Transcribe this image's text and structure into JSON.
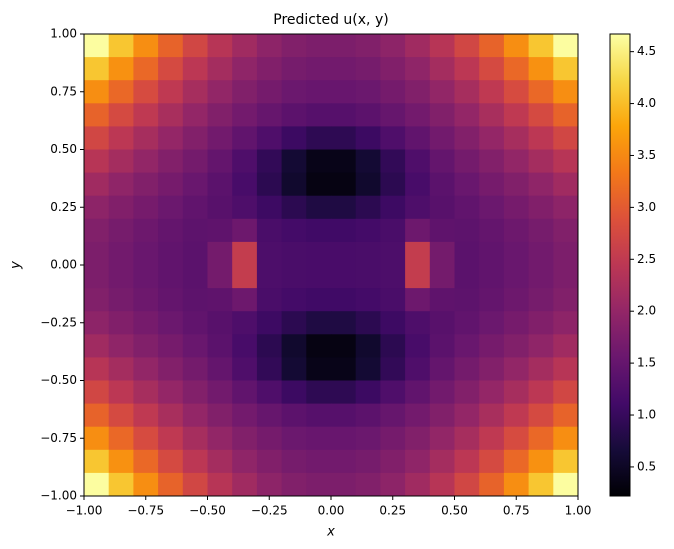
{
  "chart_data": {
    "type": "heatmap",
    "title": "Predicted u(x, y)",
    "x_label": "x",
    "y_label": "y",
    "colormap": "inferno",
    "x": [
      -0.95,
      -0.85,
      -0.75,
      -0.65,
      -0.55,
      -0.45,
      -0.35,
      -0.25,
      -0.15,
      -0.05,
      0.05,
      0.15,
      0.25,
      0.35,
      0.45,
      0.55,
      0.65,
      0.75,
      0.85,
      0.95
    ],
    "y": [
      0.95,
      0.85,
      0.75,
      0.65,
      0.55,
      0.45,
      0.35,
      0.25,
      0.15,
      0.05,
      -0.05,
      -0.15,
      -0.25,
      -0.35,
      -0.45,
      -0.55,
      -0.65,
      -0.75,
      -0.85,
      -0.95
    ],
    "z": [
      [
        4.65,
        4.07,
        3.55,
        3.1,
        2.72,
        2.39,
        2.14,
        1.94,
        1.81,
        1.75,
        1.75,
        1.81,
        1.94,
        2.14,
        2.39,
        2.72,
        3.1,
        3.55,
        4.07,
        4.65
      ],
      [
        4.07,
        3.58,
        3.15,
        2.77,
        2.45,
        2.18,
        1.96,
        1.8,
        1.69,
        1.64,
        1.64,
        1.69,
        1.8,
        1.96,
        2.18,
        2.45,
        2.77,
        3.15,
        3.58,
        4.07
      ],
      [
        3.55,
        3.15,
        2.79,
        2.48,
        2.21,
        1.99,
        1.81,
        1.67,
        1.57,
        1.53,
        1.53,
        1.57,
        1.67,
        1.81,
        1.99,
        2.21,
        2.48,
        2.79,
        3.15,
        3.55
      ],
      [
        3.1,
        2.77,
        2.48,
        2.23,
        2.0,
        1.81,
        1.65,
        1.51,
        1.4,
        1.33,
        1.33,
        1.4,
        1.51,
        1.65,
        1.81,
        2.0,
        2.23,
        2.48,
        2.77,
        3.1
      ],
      [
        2.72,
        2.45,
        2.21,
        2.01,
        1.82,
        1.64,
        1.45,
        1.25,
        1.05,
        0.91,
        0.91,
        1.05,
        1.25,
        1.45,
        1.64,
        1.82,
        2.01,
        2.21,
        2.45,
        2.72
      ],
      [
        2.39,
        2.18,
        1.99,
        1.82,
        1.66,
        1.49,
        1.25,
        0.95,
        0.62,
        0.39,
        0.39,
        0.62,
        0.95,
        1.25,
        1.49,
        1.66,
        1.82,
        1.99,
        2.18,
        2.39
      ],
      [
        2.14,
        1.96,
        1.81,
        1.68,
        1.54,
        1.39,
        1.18,
        0.89,
        0.57,
        0.34,
        0.34,
        0.57,
        0.89,
        1.18,
        1.39,
        1.54,
        1.68,
        1.81,
        1.96,
        2.14
      ],
      [
        1.94,
        1.8,
        1.68,
        1.57,
        1.46,
        1.36,
        1.24,
        1.06,
        0.89,
        0.76,
        0.76,
        0.89,
        1.06,
        1.24,
        1.36,
        1.46,
        1.57,
        1.68,
        1.8,
        1.94
      ],
      [
        1.81,
        1.69,
        1.59,
        1.49,
        1.41,
        1.43,
        1.59,
        1.2,
        1.13,
        1.09,
        1.09,
        1.13,
        1.2,
        1.59,
        1.43,
        1.41,
        1.49,
        1.59,
        1.69,
        1.81
      ],
      [
        1.75,
        1.64,
        1.54,
        1.46,
        1.39,
        1.66,
        2.54,
        1.23,
        1.2,
        1.19,
        1.19,
        1.2,
        1.23,
        2.54,
        1.66,
        1.39,
        1.46,
        1.54,
        1.64,
        1.75
      ],
      [
        1.75,
        1.64,
        1.54,
        1.46,
        1.39,
        1.66,
        2.54,
        1.23,
        1.2,
        1.19,
        1.19,
        1.2,
        1.23,
        2.54,
        1.66,
        1.39,
        1.46,
        1.54,
        1.64,
        1.75
      ],
      [
        1.81,
        1.69,
        1.59,
        1.49,
        1.41,
        1.43,
        1.59,
        1.2,
        1.13,
        1.09,
        1.09,
        1.13,
        1.2,
        1.59,
        1.43,
        1.41,
        1.49,
        1.59,
        1.69,
        1.81
      ],
      [
        1.94,
        1.8,
        1.68,
        1.57,
        1.46,
        1.36,
        1.24,
        1.06,
        0.89,
        0.76,
        0.76,
        0.89,
        1.06,
        1.24,
        1.36,
        1.46,
        1.57,
        1.68,
        1.8,
        1.94
      ],
      [
        2.14,
        1.96,
        1.81,
        1.68,
        1.54,
        1.39,
        1.18,
        0.89,
        0.57,
        0.34,
        0.34,
        0.57,
        0.89,
        1.18,
        1.39,
        1.54,
        1.68,
        1.81,
        1.96,
        2.14
      ],
      [
        2.39,
        2.18,
        1.99,
        1.82,
        1.66,
        1.49,
        1.25,
        0.95,
        0.62,
        0.39,
        0.39,
        0.62,
        0.95,
        1.25,
        1.49,
        1.66,
        1.82,
        1.99,
        2.18,
        2.39
      ],
      [
        2.72,
        2.45,
        2.21,
        2.01,
        1.82,
        1.64,
        1.45,
        1.25,
        1.05,
        0.91,
        0.91,
        1.05,
        1.25,
        1.45,
        1.64,
        1.82,
        2.01,
        2.21,
        2.45,
        2.72
      ],
      [
        3.1,
        2.77,
        2.48,
        2.23,
        2.0,
        1.81,
        1.65,
        1.51,
        1.4,
        1.33,
        1.33,
        1.4,
        1.51,
        1.65,
        1.81,
        2.0,
        2.23,
        2.48,
        2.77,
        3.1
      ],
      [
        3.55,
        3.15,
        2.79,
        2.48,
        2.21,
        1.99,
        1.81,
        1.67,
        1.57,
        1.53,
        1.53,
        1.57,
        1.67,
        1.81,
        1.99,
        2.21,
        2.48,
        2.79,
        3.15,
        3.55
      ],
      [
        4.07,
        3.58,
        3.15,
        2.77,
        2.45,
        2.18,
        1.96,
        1.8,
        1.69,
        1.64,
        1.64,
        1.69,
        1.8,
        1.96,
        2.18,
        2.45,
        2.77,
        3.15,
        3.58,
        4.07
      ],
      [
        4.65,
        4.07,
        3.55,
        3.1,
        2.72,
        2.39,
        2.14,
        1.94,
        1.81,
        1.75,
        1.75,
        1.81,
        1.94,
        2.14,
        2.39,
        2.72,
        3.1,
        3.55,
        4.07,
        4.65
      ]
    ],
    "xlim": [
      -1,
      1
    ],
    "xticks": [
      {
        "value": -1,
        "label": "−1.00"
      },
      {
        "value": -0.75,
        "label": "−0.75"
      },
      {
        "value": -0.5,
        "label": "−0.50"
      },
      {
        "value": -0.25,
        "label": "−0.25"
      },
      {
        "value": 0,
        "label": "0.00"
      },
      {
        "value": 0.25,
        "label": "0.25"
      },
      {
        "value": 0.5,
        "label": "0.50"
      },
      {
        "value": 0.75,
        "label": "0.75"
      },
      {
        "value": 1,
        "label": "1.00"
      }
    ],
    "ylim": [
      -1,
      1
    ],
    "yticks": [
      {
        "value": -1,
        "label": "−1.00"
      },
      {
        "value": -0.75,
        "label": "−0.75"
      },
      {
        "value": -0.5,
        "label": "−0.50"
      },
      {
        "value": -0.25,
        "label": "−0.25"
      },
      {
        "value": 0,
        "label": "0.00"
      },
      {
        "value": 0.25,
        "label": "0.25"
      },
      {
        "value": 0.5,
        "label": "0.50"
      },
      {
        "value": 0.75,
        "label": "0.75"
      },
      {
        "value": 1,
        "label": "1.00"
      }
    ],
    "clim": [
      0.22,
      4.67
    ],
    "cticks": [
      0.5,
      {
        "value": 1,
        "label": "1.0"
      },
      1.5,
      {
        "value": 2,
        "label": "2.0"
      },
      2.5,
      {
        "value": 3,
        "label": "3.0"
      },
      3.5,
      {
        "value": 4,
        "label": "4.0"
      },
      4.5
    ]
  }
}
